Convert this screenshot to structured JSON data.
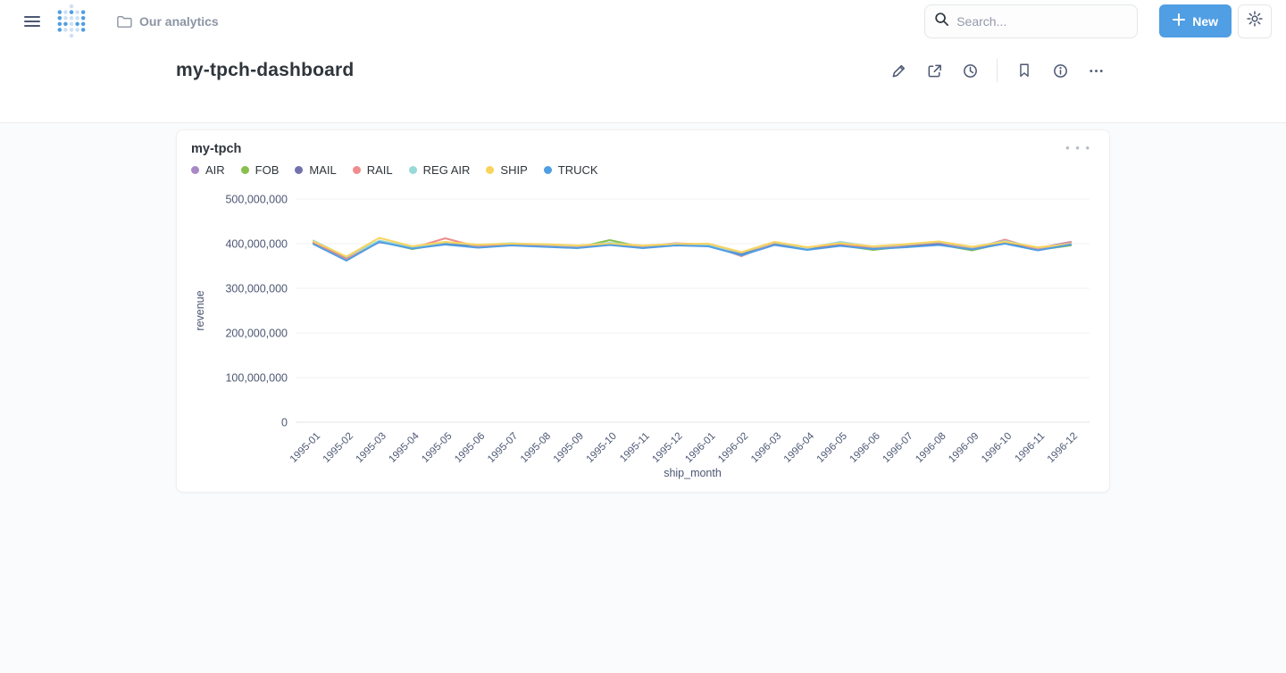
{
  "nav": {
    "breadcrumb_label": "Our analytics",
    "search_placeholder": "Search...",
    "new_button_label": "New"
  },
  "header": {
    "title": "my-tpch-dashboard",
    "action_icons": [
      "pencil-icon",
      "share-icon",
      "clock-icon",
      "bookmark-icon",
      "info-icon",
      "ellipsis-icon"
    ]
  },
  "card": {
    "title": "my-tpch",
    "menu_icon": "ellipsis-icon"
  },
  "colors": {
    "brand": "#509ee3",
    "text_dark": "#2e353b",
    "text_medium": "#4c5773",
    "text_light": "#8c95a3",
    "page_bg": "#f9fbfc",
    "grid_line": "#f0f1f2",
    "axis_line": "#e3e6e8"
  },
  "chart_data": {
    "type": "line",
    "title": "my-tpch",
    "xlabel": "ship_month",
    "ylabel": "revenue",
    "ylim": [
      0,
      500000000
    ],
    "yticks": [
      0,
      100000000,
      200000000,
      300000000,
      400000000,
      500000000
    ],
    "grid": "horizontal",
    "legend_position": "top-left",
    "x": [
      "1995-01",
      "1995-02",
      "1995-03",
      "1995-04",
      "1995-05",
      "1995-06",
      "1995-07",
      "1995-08",
      "1995-09",
      "1995-10",
      "1995-11",
      "1995-12",
      "1996-01",
      "1996-02",
      "1996-03",
      "1996-04",
      "1996-05",
      "1996-06",
      "1996-07",
      "1996-08",
      "1996-09",
      "1996-10",
      "1996-11",
      "1996-12"
    ],
    "series": [
      {
        "name": "AIR",
        "color": "#a989c5",
        "values": [
          404000000,
          368000000,
          403000000,
          393000000,
          399000000,
          394000000,
          398000000,
          396000000,
          393000000,
          398000000,
          393000000,
          397000000,
          399000000,
          379000000,
          400000000,
          390000000,
          397000000,
          392000000,
          395000000,
          399000000,
          391000000,
          403000000,
          390000000,
          404000000
        ]
      },
      {
        "name": "FOB",
        "color": "#88bf4d",
        "values": [
          406000000,
          369000000,
          405000000,
          388000000,
          400000000,
          392000000,
          400000000,
          394000000,
          391000000,
          408000000,
          392000000,
          398000000,
          395000000,
          378000000,
          399000000,
          387000000,
          396000000,
          386000000,
          394000000,
          398000000,
          385000000,
          402000000,
          386000000,
          396000000
        ]
      },
      {
        "name": "MAIL",
        "color": "#7172ad",
        "values": [
          402000000,
          366000000,
          404000000,
          391000000,
          401000000,
          395000000,
          397000000,
          395000000,
          392000000,
          399000000,
          392000000,
          398000000,
          396000000,
          376000000,
          398000000,
          388000000,
          398000000,
          390000000,
          393000000,
          400000000,
          389000000,
          401000000,
          388000000,
          401000000
        ]
      },
      {
        "name": "RAIL",
        "color": "#ef8c8c",
        "values": [
          401000000,
          365000000,
          406000000,
          390000000,
          412000000,
          393000000,
          399000000,
          396000000,
          394000000,
          400000000,
          394000000,
          401000000,
          398000000,
          372000000,
          402000000,
          391000000,
          400000000,
          389000000,
          397000000,
          403000000,
          388000000,
          409000000,
          387000000,
          403000000
        ]
      },
      {
        "name": "REG AIR",
        "color": "#98d9d9",
        "values": [
          407000000,
          370000000,
          407000000,
          392000000,
          403000000,
          397000000,
          401000000,
          398000000,
          395000000,
          402000000,
          395000000,
          400000000,
          397000000,
          380000000,
          403000000,
          390000000,
          404000000,
          393000000,
          398000000,
          404000000,
          392000000,
          406000000,
          391000000,
          400000000
        ]
      },
      {
        "name": "SHIP",
        "color": "#f9d45c",
        "values": [
          405000000,
          371000000,
          413000000,
          394000000,
          404000000,
          398000000,
          400000000,
          399000000,
          396000000,
          400000000,
          396000000,
          399000000,
          400000000,
          381000000,
          404000000,
          392000000,
          401000000,
          394000000,
          399000000,
          405000000,
          393000000,
          404000000,
          392000000,
          399000000
        ]
      },
      {
        "name": "TRUCK",
        "color": "#509ee3",
        "values": [
          399000000,
          362000000,
          404000000,
          389000000,
          398000000,
          391000000,
          396000000,
          393000000,
          390000000,
          397000000,
          390000000,
          396000000,
          394000000,
          374000000,
          397000000,
          386000000,
          395000000,
          388000000,
          392000000,
          397000000,
          387000000,
          400000000,
          385000000,
          398000000
        ]
      }
    ]
  }
}
